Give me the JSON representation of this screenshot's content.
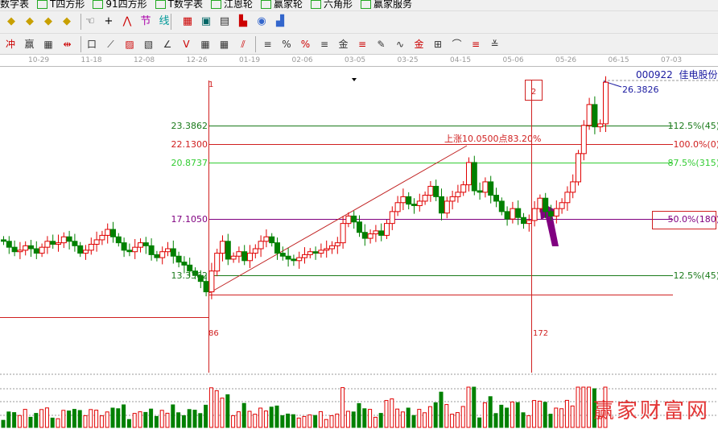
{
  "toolbar_top": [
    "数字表",
    "T四方形",
    "91四方形",
    "T数字表",
    "江恩轮",
    "赢家轮",
    "六角形",
    "赢家服务"
  ],
  "toolbar2_icons": [
    "move-left-icon",
    "move-right-icon",
    "expand-icon",
    "shrink-icon",
    "hand-icon",
    "crosshair-icon",
    "zigzag-icon",
    "section-icon",
    "pattern-icon",
    "calendar-icon",
    "calculator-icon",
    "notes-icon",
    "save-icon",
    "network-icon",
    "computer-icon"
  ],
  "toolbar3_icons": [
    "chan-icon",
    "win-icon",
    "ruler-icon",
    "measure-icon",
    "box-icon",
    "fan-icon",
    "gann-box-icon",
    "gann-square-icon",
    "angle-icon",
    "wave-icon",
    "grid-icon",
    "grid2-icon",
    "parallel-icon",
    "fib-bar-icon",
    "percent-fib-icon",
    "percent-icon",
    "percent-line-icon",
    "gold-icon",
    "gold-line-icon",
    "pen-icon",
    "cycle-icon",
    "gold2-icon",
    "fib-time-icon",
    "fib-arc-icon",
    "fib-ext-icon",
    "fib-fan-icon"
  ],
  "date_axis": [
    "10-29",
    "11-18",
    "12-08",
    "12-26",
    "01-19",
    "02-06",
    "03-05",
    "03-25",
    "04-15",
    "05-06",
    "05-26",
    "06-15",
    "07-03"
  ],
  "stock": {
    "code": "000922",
    "name": "佳电股份",
    "last_price": "26.3826"
  },
  "rise_label": "上涨10.0500点83.20%",
  "markers": {
    "m1": "1",
    "m1_bars": "86",
    "m2": "2",
    "m2_bars": "172"
  },
  "levels": [
    {
      "price": "23.3862",
      "label": "112.5%(45)",
      "color": "#1a7a1a"
    },
    {
      "price": "22.1300",
      "label": "100.0%(0)",
      "color": "#d02020"
    },
    {
      "price": "20.8737",
      "label": "87.5%(315)",
      "color": "#33cc33"
    },
    {
      "price": "17.1050",
      "label": "50.0%(180)",
      "color": "#800080"
    },
    {
      "price": "13.3362",
      "label": "12.5%(45)",
      "color": "#1a7a1a"
    }
  ],
  "colors": {
    "up": "#e00000",
    "down": "#008000",
    "text_blue": "#1a1aa0"
  },
  "candles_close": [
    15.6,
    15.2,
    14.9,
    15.0,
    15.3,
    15.1,
    14.8,
    15.2,
    15.6,
    15.4,
    15.5,
    15.9,
    15.6,
    15.3,
    14.8,
    15.0,
    15.4,
    15.7,
    16.0,
    16.4,
    15.9,
    15.5,
    15.0,
    14.9,
    15.2,
    15.5,
    15.3,
    14.7,
    14.5,
    14.9,
    15.1,
    14.6,
    14.2,
    14.0,
    13.6,
    13.3,
    12.9,
    12.2,
    13.6,
    14.8,
    15.6,
    14.4,
    14.6,
    14.9,
    14.3,
    14.8,
    15.1,
    15.6,
    15.9,
    15.5,
    14.8,
    14.6,
    14.4,
    14.3,
    14.5,
    14.7,
    14.9,
    14.8,
    15.0,
    15.1,
    15.3,
    15.5,
    16.8,
    17.3,
    16.9,
    16.2,
    15.8,
    16.1,
    16.3,
    16.0,
    16.8,
    17.6,
    18.2,
    18.6,
    18.1,
    18.0,
    18.3,
    18.7,
    19.3,
    18.6,
    17.5,
    18.3,
    18.6,
    18.9,
    19.4,
    20.9,
    19.0,
    18.9,
    19.6,
    18.7,
    18.3,
    17.6,
    17.1,
    17.8,
    17.2,
    16.8,
    17.0,
    17.8,
    18.5,
    17.6,
    17.3,
    17.8,
    18.2,
    18.9,
    19.6,
    21.5,
    23.4,
    24.8,
    23.3,
    23.5,
    26.3
  ],
  "watermark": "赢家财富网"
}
